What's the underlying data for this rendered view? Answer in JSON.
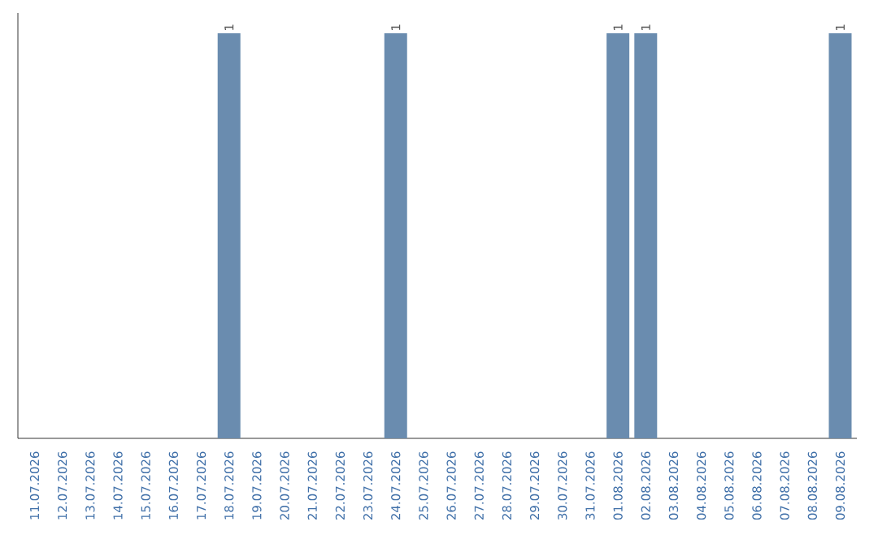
{
  "chart_data": {
    "type": "bar",
    "categories": [
      "11.07.2026",
      "12.07.2026",
      "13.07.2026",
      "14.07.2026",
      "15.07.2026",
      "16.07.2026",
      "17.07.2026",
      "18.07.2026",
      "19.07.2026",
      "20.07.2026",
      "21.07.2026",
      "22.07.2026",
      "23.07.2026",
      "24.07.2026",
      "25.07.2026",
      "26.07.2026",
      "27.07.2026",
      "28.07.2026",
      "29.07.2026",
      "30.07.2026",
      "31.07.2026",
      "01.08.2026",
      "02.08.2026",
      "03.08.2026",
      "04.08.2026",
      "05.08.2026",
      "06.08.2026",
      "07.08.2026",
      "08.08.2026",
      "09.08.2026"
    ],
    "values": [
      0,
      0,
      0,
      0,
      0,
      0,
      0,
      1,
      0,
      0,
      0,
      0,
      0,
      1,
      0,
      0,
      0,
      0,
      0,
      0,
      0,
      1,
      1,
      0,
      0,
      0,
      0,
      0,
      0,
      1
    ],
    "value_labels": [
      null,
      null,
      null,
      null,
      null,
      null,
      null,
      "1",
      null,
      null,
      null,
      null,
      null,
      "1",
      null,
      null,
      null,
      null,
      null,
      null,
      null,
      "1",
      "1",
      null,
      null,
      null,
      null,
      null,
      null,
      "1"
    ],
    "color": "#6a8caf",
    "ylim": [
      0,
      1.05
    ],
    "tick_labels": "x"
  }
}
